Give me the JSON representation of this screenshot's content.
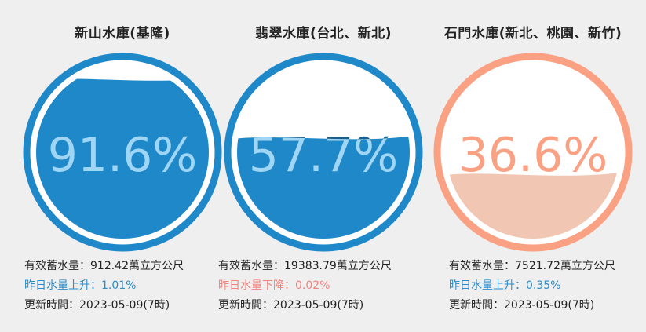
{
  "reservoirs": [
    {
      "name": "新山水庫(基隆)",
      "percent_label": "91.6%",
      "percent": 91.6,
      "storage": "有效蓄水量：912.42萬立方公尺",
      "change": "昨日水量上升：1.01%",
      "change_direction": "up",
      "updated": "更新時間：2023-05-09(7時)",
      "colors": {
        "ring": "#1e88c9",
        "fill": "#1e88c9",
        "text": "#9fd6f5"
      }
    },
    {
      "name": "翡翠水庫(台北、新北)",
      "percent_label": "57.7%",
      "percent": 57.7,
      "storage": "有效蓄水量：19383.79萬立方公尺",
      "change": "昨日水量下降：0.02%",
      "change_direction": "down",
      "updated": "更新時間：2023-05-09(7時)",
      "colors": {
        "ring": "#1e88c9",
        "fill": "#1e88c9",
        "text": "#9fd6f5",
        "text_above": "#1a5f8c"
      }
    },
    {
      "name": "石門水庫(新北、桃園、新竹)",
      "percent_label": "36.6%",
      "percent": 36.6,
      "storage": "有效蓄水量：7521.72萬立方公尺",
      "change": "昨日水量上升：0.35%",
      "change_direction": "up",
      "updated": "更新時間：2023-05-09(7時)",
      "colors": {
        "ring": "#fba183",
        "fill": "#f1c6b2",
        "text": "#fba183"
      }
    }
  ]
}
